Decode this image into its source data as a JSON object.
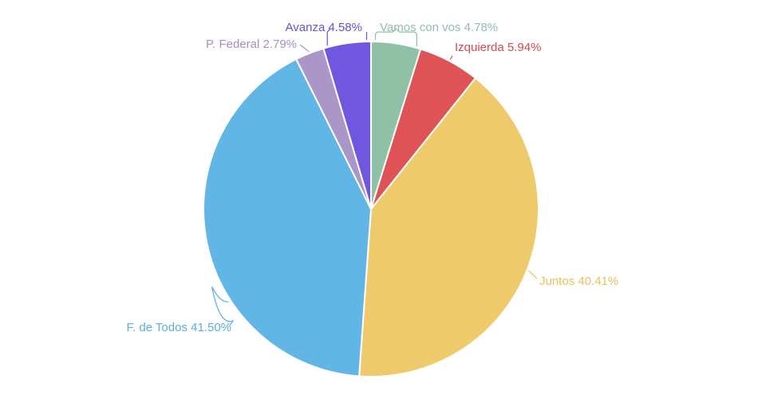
{
  "chart_data": {
    "type": "pie",
    "title": "",
    "start_angle_deg": 0,
    "direction": "clockwise",
    "slices": [
      {
        "label": "Vamos con vos",
        "value": 4.78,
        "display": "Vamos con vos 4.78%",
        "color": "#8fc1a7",
        "label_color": "#8fc1a7",
        "placement": "top"
      },
      {
        "label": "Izquierda",
        "value": 5.94,
        "display": "Izquierda 5.94%",
        "color": "#df5357",
        "label_color": "#d94a4f",
        "placement": "top-right"
      },
      {
        "label": "Juntos",
        "value": 40.41,
        "display": "Juntos 40.41%",
        "color": "#efca6a",
        "label_color": "#e8c15c",
        "placement": "right"
      },
      {
        "label": "F. de Todos",
        "value": 41.5,
        "display": "F. de Todos 41.50%",
        "color": "#61b6e5",
        "label_color": "#5aaee0",
        "placement": "bottom-left"
      },
      {
        "label": "P. Federal",
        "value": 2.79,
        "display": "P. Federal 2.79%",
        "color": "#ab96c8",
        "label_color": "#a78fc6",
        "placement": "top-left"
      },
      {
        "label": "Avanza",
        "value": 4.58,
        "display": "Avanza 4.58%",
        "color": "#7156df",
        "label_color": "#6a4fd8",
        "placement": "top"
      }
    ]
  }
}
